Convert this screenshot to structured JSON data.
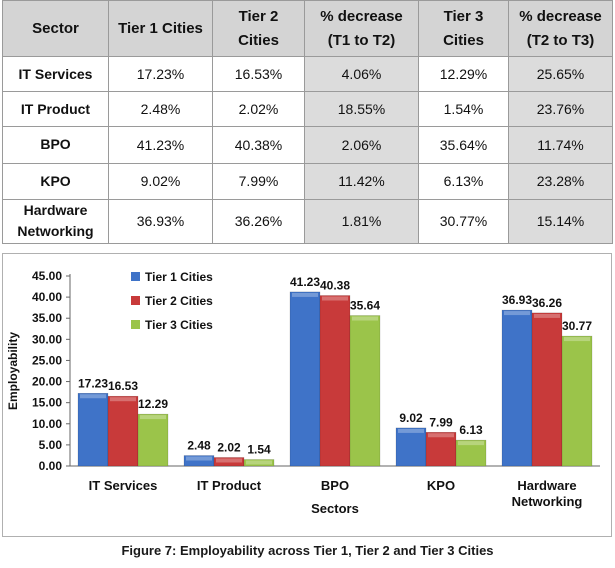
{
  "table": {
    "headers": [
      "Sector",
      "Tier 1 Cities",
      "Tier 2\nCities",
      "% decrease\n(T1 to T2)",
      "Tier 3\nCities",
      "% decrease\n(T2 to T3)"
    ],
    "rows": [
      [
        "IT Services",
        "17.23%",
        "16.53%",
        "4.06%",
        "12.29%",
        "25.65%"
      ],
      [
        "IT Product",
        "2.48%",
        "2.02%",
        "18.55%",
        "1.54%",
        "23.76%"
      ],
      [
        "BPO",
        "41.23%",
        "40.38%",
        "2.06%",
        "35.64%",
        "11.74%"
      ],
      [
        "KPO",
        "9.02%",
        "7.99%",
        "11.42%",
        "6.13%",
        "23.28%"
      ],
      [
        "Hardware\nNetworking",
        "36.93%",
        "36.26%",
        "1.81%",
        "30.77%",
        "15.14%"
      ]
    ]
  },
  "chart_data": {
    "type": "bar",
    "categories": [
      "IT Services",
      "IT Product",
      "BPO",
      "KPO",
      "Hardware\nNetworking"
    ],
    "series": [
      {
        "name": "Tier 1 Cities",
        "values": [
          17.23,
          2.48,
          41.23,
          9.02,
          36.93
        ],
        "color": "#3f73c8"
      },
      {
        "name": "Tier 2 Cities",
        "values": [
          16.53,
          2.02,
          40.38,
          7.99,
          36.26
        ],
        "color": "#c83a3a"
      },
      {
        "name": "Tier 3 Cities",
        "values": [
          12.29,
          1.54,
          35.64,
          6.13,
          30.77
        ],
        "color": "#9bc44a"
      }
    ],
    "data_labels": [
      [
        "17.23",
        "2.48",
        "41.23",
        "9.02",
        "36.93"
      ],
      [
        "16.53",
        "2.02",
        "40.38",
        "7.99",
        "36.26"
      ],
      [
        "12.29",
        "1.54",
        "35.64",
        "6.13",
        "30.77"
      ]
    ],
    "yticks": [
      "0.00",
      "5.00",
      "10.00",
      "15.00",
      "20.00",
      "25.00",
      "30.00",
      "35.00",
      "40.00",
      "45.00"
    ],
    "ylim": [
      0,
      45
    ],
    "xlabel": "Sectors",
    "ylabel": "Employability",
    "title": "",
    "grid": false,
    "legend_position": "top-left"
  },
  "caption": "Figure 7: Employability across Tier 1, Tier 2 and Tier 3 Cities"
}
